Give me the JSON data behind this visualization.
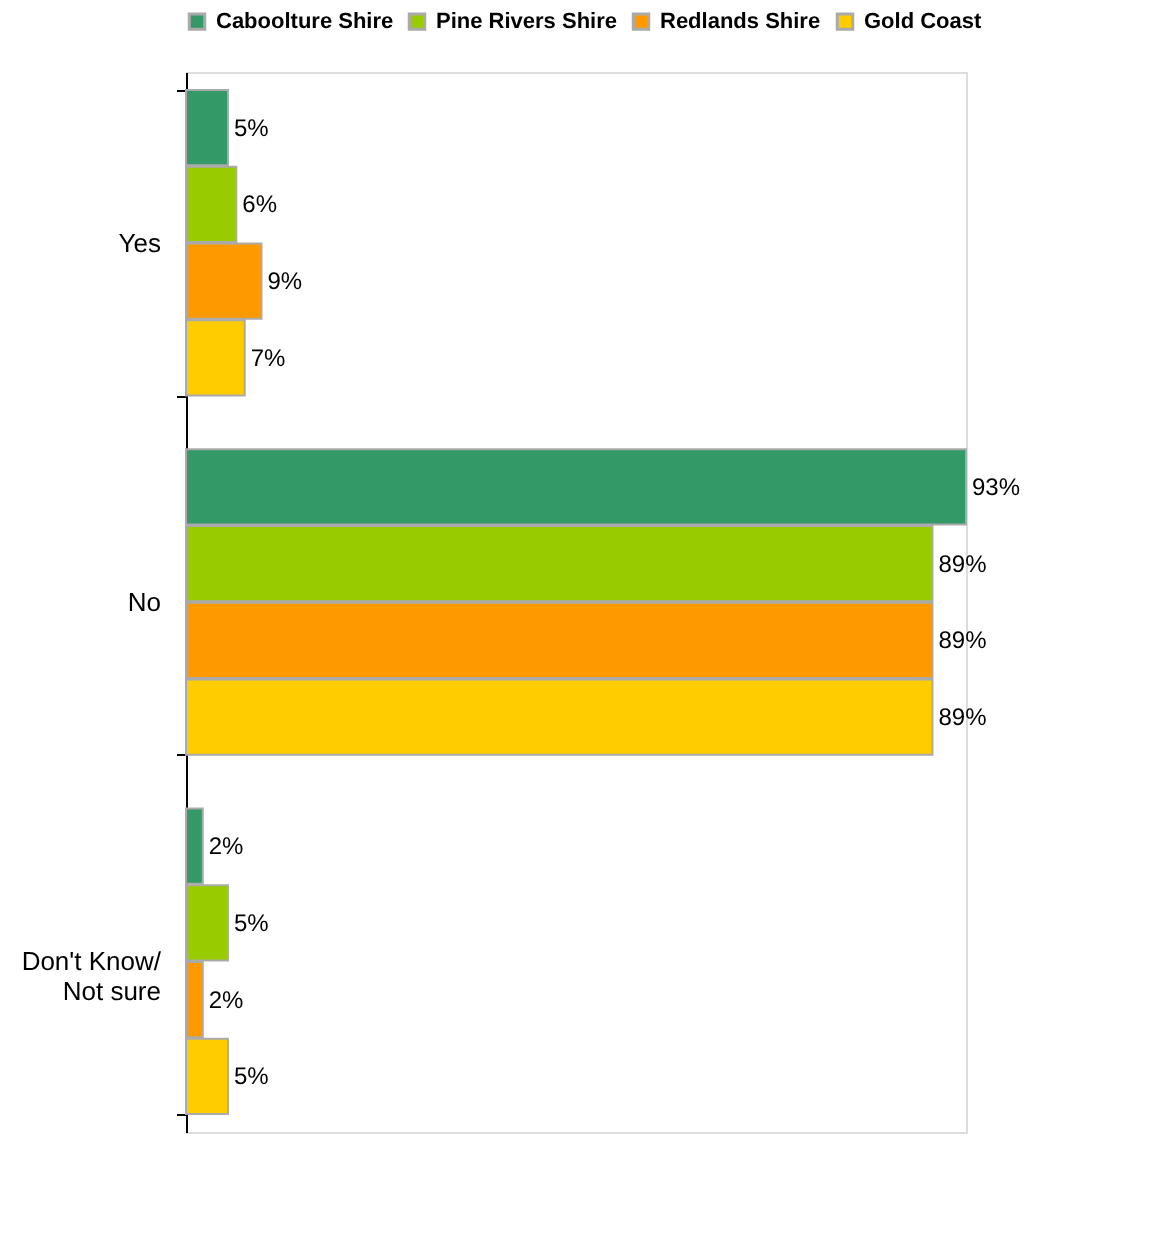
{
  "chart_data": {
    "type": "bar",
    "orientation": "horizontal",
    "categories": [
      "Yes",
      "No",
      "Don't Know/\nNot sure"
    ],
    "series": [
      {
        "name": "Caboolture Shire",
        "color": "#339966",
        "values": [
          5,
          93,
          2
        ],
        "value_labels": [
          "5%",
          "93%",
          "2%"
        ]
      },
      {
        "name": "Pine Rivers Shire",
        "color": "#99cc00",
        "values": [
          6,
          89,
          5
        ],
        "value_labels": [
          "6%",
          "89%",
          "5%"
        ]
      },
      {
        "name": "Redlands Shire",
        "color": "#ff9900",
        "values": [
          9,
          89,
          2
        ],
        "value_labels": [
          "9%",
          "89%",
          "2%"
        ]
      },
      {
        "name": "Gold Coast",
        "color": "#ffcc00",
        "values": [
          7,
          89,
          5
        ],
        "value_labels": [
          "7%",
          "89%",
          "5%"
        ]
      }
    ],
    "legend": "top",
    "grid": false
  }
}
